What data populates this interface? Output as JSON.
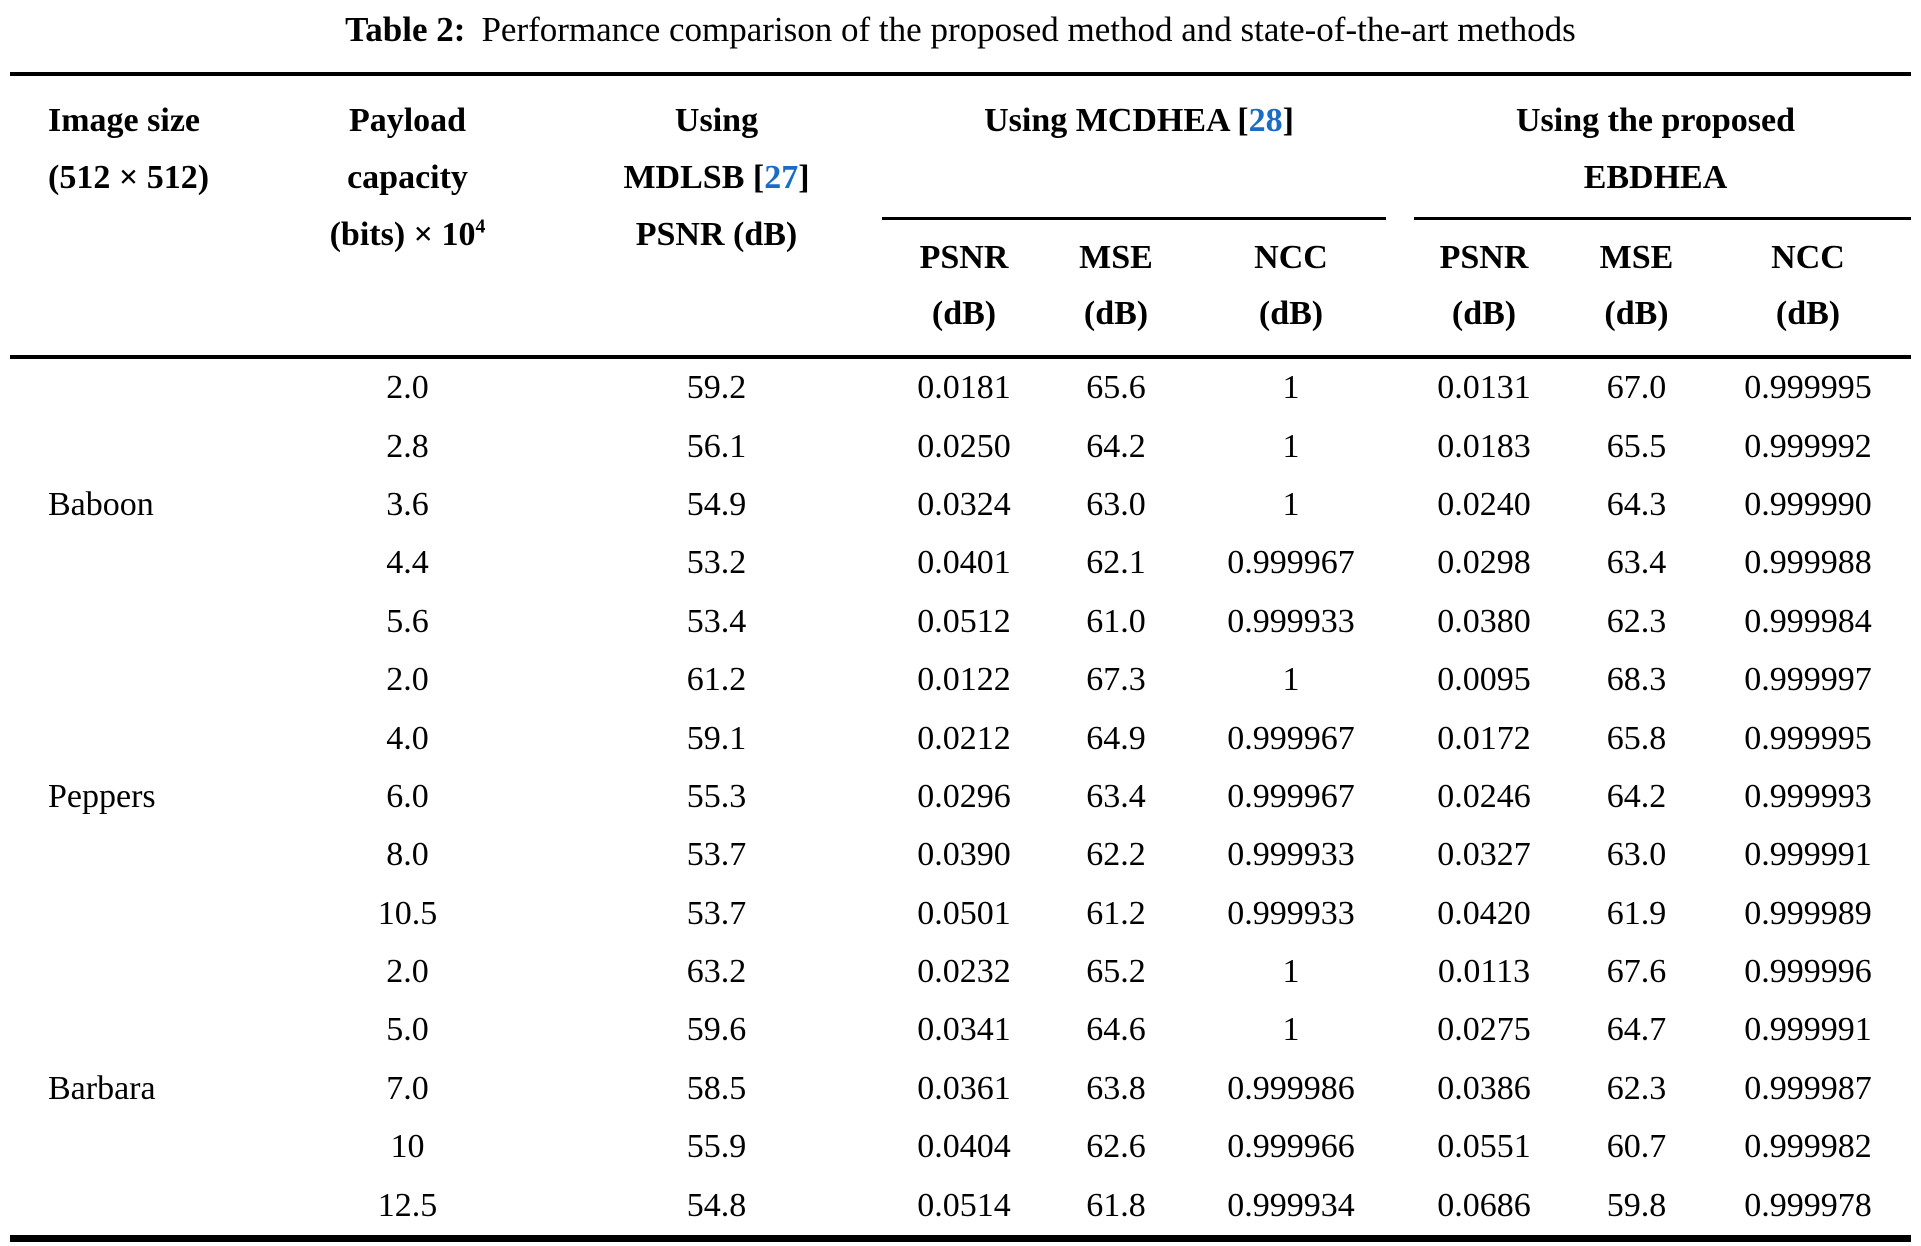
{
  "caption": {
    "label": "Table 2:",
    "text": "Performance comparison of the proposed method and state-of-the-art methods"
  },
  "colors": {
    "citation_blue": "#1b6cc8",
    "text": "#000000",
    "background": "#ffffff",
    "rule": "#000000"
  },
  "header": {
    "image_size": {
      "line1": "Image size",
      "line2": "(512 × 512)"
    },
    "payload": {
      "line1": "Payload",
      "line2": "capacity",
      "line3_pre": "(bits) × 10",
      "line3_sup": "4"
    },
    "mdlsb": {
      "line1": "Using",
      "line2_pre": "MDLSB [",
      "cite": "27",
      "line2_post": "]",
      "line3": "PSNR (dB)"
    },
    "mcdhea": {
      "label_pre": "Using MCDHEA [",
      "cite": "28",
      "label_post": "]"
    },
    "ebdhea": {
      "line1": "Using the proposed",
      "line2": "EBDHEA"
    },
    "sub": {
      "psnr": "PSNR",
      "mse": "MSE",
      "ncc": "NCC",
      "unit": "(dB)"
    }
  },
  "rows": [
    [
      "",
      "2.0",
      "59.2",
      "0.0181",
      "65.6",
      "1",
      "0.0131",
      "67.0",
      "0.999995"
    ],
    [
      "",
      "2.8",
      "56.1",
      "0.0250",
      "64.2",
      "1",
      "0.0183",
      "65.5",
      "0.999992"
    ],
    [
      "Baboon",
      "3.6",
      "54.9",
      "0.0324",
      "63.0",
      "1",
      "0.0240",
      "64.3",
      "0.999990"
    ],
    [
      "",
      "4.4",
      "53.2",
      "0.0401",
      "62.1",
      "0.999967",
      "0.0298",
      "63.4",
      "0.999988"
    ],
    [
      "",
      "5.6",
      "53.4",
      "0.0512",
      "61.0",
      "0.999933",
      "0.0380",
      "62.3",
      "0.999984"
    ],
    [
      "",
      "2.0",
      "61.2",
      "0.0122",
      "67.3",
      "1",
      "0.0095",
      "68.3",
      "0.999997"
    ],
    [
      "",
      "4.0",
      "59.1",
      "0.0212",
      "64.9",
      "0.999967",
      "0.0172",
      "65.8",
      "0.999995"
    ],
    [
      "Peppers",
      "6.0",
      "55.3",
      "0.0296",
      "63.4",
      "0.999967",
      "0.0246",
      "64.2",
      "0.999993"
    ],
    [
      "",
      "8.0",
      "53.7",
      "0.0390",
      "62.2",
      "0.999933",
      "0.0327",
      "63.0",
      "0.999991"
    ],
    [
      "",
      "10.5",
      "53.7",
      "0.0501",
      "61.2",
      "0.999933",
      "0.0420",
      "61.9",
      "0.999989"
    ],
    [
      "",
      "2.0",
      "63.2",
      "0.0232",
      "65.2",
      "1",
      "0.0113",
      "67.6",
      "0.999996"
    ],
    [
      "",
      "5.0",
      "59.6",
      "0.0341",
      "64.6",
      "1",
      "0.0275",
      "64.7",
      "0.999991"
    ],
    [
      "Barbara",
      "7.0",
      "58.5",
      "0.0361",
      "63.8",
      "0.999986",
      "0.0386",
      "62.3",
      "0.999987"
    ],
    [
      "",
      "10",
      "55.9",
      "0.0404",
      "62.6",
      "0.999966",
      "0.0551",
      "60.7",
      "0.999982"
    ],
    [
      "",
      "12.5",
      "54.8",
      "0.0514",
      "61.8",
      "0.999934",
      "0.0686",
      "59.8",
      "0.999978"
    ]
  ],
  "column_names": [
    "image-name",
    "payload-capacity",
    "mdlsb-psnr",
    "mcdhea-psnr",
    "mcdhea-mse",
    "mcdhea-ncc",
    "ebdhea-psnr",
    "ebdhea-mse",
    "ebdhea-ncc"
  ]
}
